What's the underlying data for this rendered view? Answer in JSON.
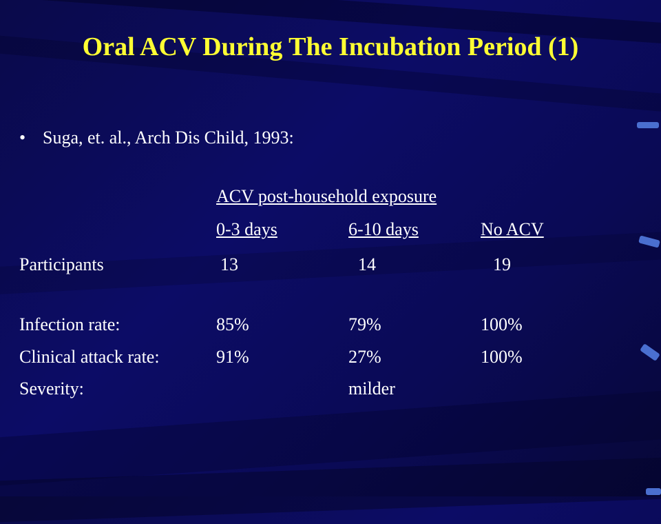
{
  "slide": {
    "title": "Oral ACV During The Incubation Period (1)",
    "bullet": "Suga, et. al., Arch Dis Child, 1993:",
    "group_header": "ACV post-household exposure",
    "columns": [
      "0-3 days",
      "6-10 days",
      "No ACV"
    ],
    "rows": [
      {
        "label": "Participants",
        "values": [
          "13",
          "14",
          "19"
        ]
      },
      {
        "label": "Infection rate:",
        "values": [
          "85%",
          "79%",
          "100%"
        ]
      },
      {
        "label": "Clinical attack rate:",
        "values": [
          "91%",
          "27%",
          "100%"
        ]
      },
      {
        "label": "Severity:",
        "values": [
          "",
          "milder",
          ""
        ]
      }
    ]
  }
}
